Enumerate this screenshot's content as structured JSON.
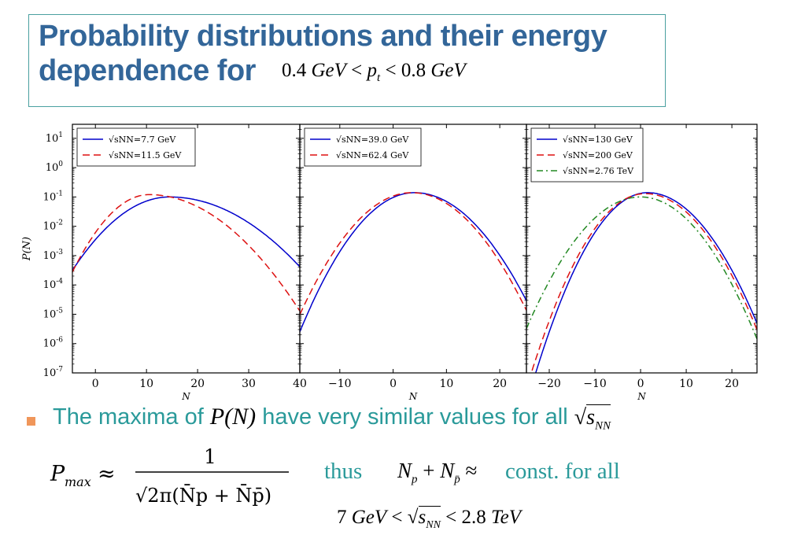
{
  "title": {
    "line1": "Probability distributions and their energy",
    "line2": "dependence for",
    "pt_lo": "0.4",
    "pt_hi": "0.8",
    "unit": "GeV",
    "var": "p"
  },
  "chart_data": [
    {
      "type": "line",
      "ylabel": "P(N)",
      "xlabel": "N",
      "yscale": "log",
      "xlim": [
        -4.5,
        40
      ],
      "ylim": [
        1e-07,
        30
      ],
      "xticks": [
        "0",
        "10",
        "20",
        "30",
        "40"
      ],
      "yticks": [
        "10^1",
        "10^0",
        "10^-1",
        "10^-2",
        "10^-3",
        "10^-4",
        "10^-5",
        "10^-6",
        "10^-7"
      ],
      "legend_position": "top-left",
      "series": [
        {
          "name": "√sNN=7.7 GeV",
          "color": "#0000cc",
          "dash": "solid",
          "peak_N": 14.5,
          "peak_P": 0.1,
          "sigma_left": 5.6,
          "sigma_right": 7.7
        },
        {
          "name": "√sNN=11.5 GeV",
          "color": "#dd1111",
          "dash": "dashed",
          "peak_N": 10.5,
          "peak_P": 0.12,
          "sigma_left": 4.3,
          "sigma_right": 6.9
        }
      ]
    },
    {
      "type": "line",
      "xlabel": "N",
      "yscale": "log",
      "xlim": [
        -17.5,
        25
      ],
      "ylim": [
        1e-07,
        30
      ],
      "xticks": [
        "−10",
        "0",
        "10",
        "20"
      ],
      "legend_position": "top-left",
      "series": [
        {
          "name": "√sNN=39.0 GeV",
          "color": "#0000cc",
          "dash": "solid",
          "peak_N": 4,
          "peak_P": 0.14,
          "sigma_left": 4.6,
          "sigma_right": 5.1
        },
        {
          "name": "√sNN=62.4 GeV",
          "color": "#dd1111",
          "dash": "dashed",
          "peak_N": 3.5,
          "peak_P": 0.14,
          "sigma_left": 4.8,
          "sigma_right": 5.0
        }
      ]
    },
    {
      "type": "line",
      "xlabel": "N",
      "yscale": "log",
      "xlim": [
        -25,
        25.5
      ],
      "ylim": [
        1e-07,
        30
      ],
      "xticks": [
        "−20",
        "−10",
        "0",
        "10",
        "20"
      ],
      "legend_position": "top-left",
      "series": [
        {
          "name": "√sNN=130 GeV",
          "color": "#0000cc",
          "dash": "solid",
          "peak_N": 1.5,
          "peak_P": 0.14,
          "sigma_left": 4.6,
          "sigma_right": 5.3
        },
        {
          "name": "√sNN=200 GeV",
          "color": "#dd1111",
          "dash": "dashed",
          "peak_N": 1,
          "peak_P": 0.13,
          "sigma_left": 4.7,
          "sigma_right": 5.3
        },
        {
          "name": "√sNN=2.76 TeV",
          "color": "#228822",
          "dash": "dashdot",
          "peak_N": 0,
          "peak_P": 0.1,
          "sigma_left": 5.5,
          "sigma_right": 5.4
        }
      ]
    }
  ],
  "bullet": {
    "text_before": "The maxima of",
    "math": "P(N)",
    "text_after": "have very similar values for all",
    "sqrt_label": "s",
    "sqrt_sub": "NN"
  },
  "formula": {
    "lhs": "P",
    "lhs_sub": "max",
    "approx": "≈",
    "numerator": "1",
    "denominator": "√2π(N̄p + N̄p̄)"
  },
  "conclusion": {
    "thus": "thus",
    "sum": "N",
    "approx": "≈",
    "const": "const. for all",
    "energy_lo": "7",
    "energy_hi": "2.8",
    "unit_lo": "GeV",
    "unit_hi": "TeV"
  },
  "colors": {
    "title": "#336699",
    "teal": "#2a9a9a",
    "bullet": "#f0965a",
    "blue": "#0000cc",
    "red": "#dd1111",
    "green": "#228822"
  }
}
